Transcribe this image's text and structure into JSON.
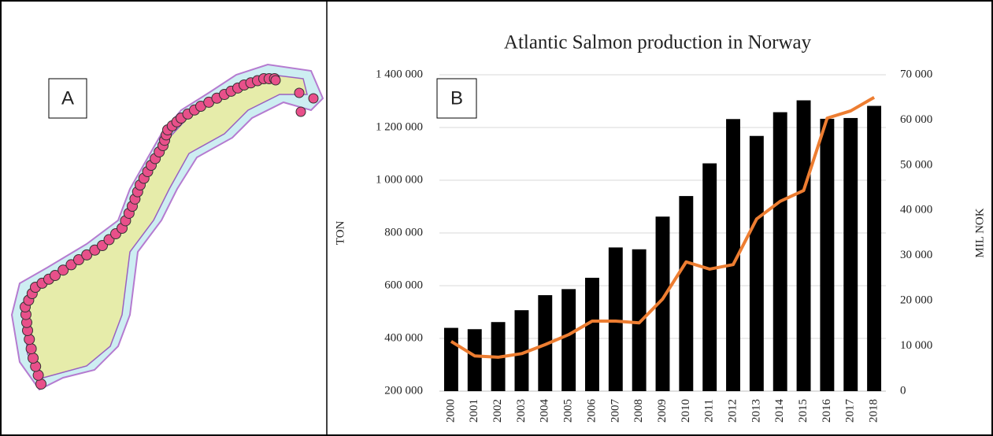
{
  "panels": {
    "a": "A",
    "b": "B"
  },
  "chart_data": {
    "type": "bar_line",
    "title": "Atlantic Salmon production in Norway",
    "y_label": "TON",
    "y2_label": "MIL NOK",
    "categories": [
      "2000",
      "2001",
      "2002",
      "2003",
      "2004",
      "2005",
      "2006",
      "2007",
      "2008",
      "2009",
      "2010",
      "2011",
      "2012",
      "2013",
      "2014",
      "2015",
      "2016",
      "2017",
      "2018"
    ],
    "series": [
      {
        "name": "TON",
        "type": "bar",
        "color": "#000000",
        "values": [
          440000,
          435000,
          462000,
          507000,
          564000,
          587000,
          630000,
          745000,
          738000,
          862000,
          940000,
          1064000,
          1232000,
          1168000,
          1258000,
          1303000,
          1233000,
          1236000,
          1282000
        ]
      },
      {
        "name": "MIL NOK",
        "type": "line",
        "axis": "y2",
        "color": "#ed7d31",
        "values": [
          11000,
          7800,
          7500,
          8300,
          10300,
          12500,
          15500,
          15500,
          15100,
          20400,
          28600,
          27000,
          28000,
          38100,
          42000,
          44400,
          60400,
          62000,
          65000
        ]
      }
    ],
    "ylim": [
      200000,
      1400000
    ],
    "yticks": [
      {
        "value": 200000,
        "label": "200 000"
      },
      {
        "value": 400000,
        "label": "400 000"
      },
      {
        "value": 600000,
        "label": "600 000"
      },
      {
        "value": 800000,
        "label": "800 000"
      },
      {
        "value": 1000000,
        "label": "1 000 000"
      },
      {
        "value": 1200000,
        "label": "1 200 000"
      },
      {
        "value": 1400000,
        "label": "1 400 000"
      }
    ],
    "y2lim": [
      0,
      70000
    ],
    "y2ticks": [
      0,
      {
        "value": 10000,
        "label": "10 000"
      },
      {
        "value": 20000,
        "label": "20 000"
      },
      {
        "value": 30000,
        "label": "30 000"
      },
      {
        "value": 40000,
        "label": "40 000"
      },
      {
        "value": 50000,
        "label": "50 000"
      },
      {
        "value": 60000,
        "label": "60 000"
      },
      {
        "value": 70000,
        "label": "70 000"
      }
    ],
    "grid": true
  }
}
